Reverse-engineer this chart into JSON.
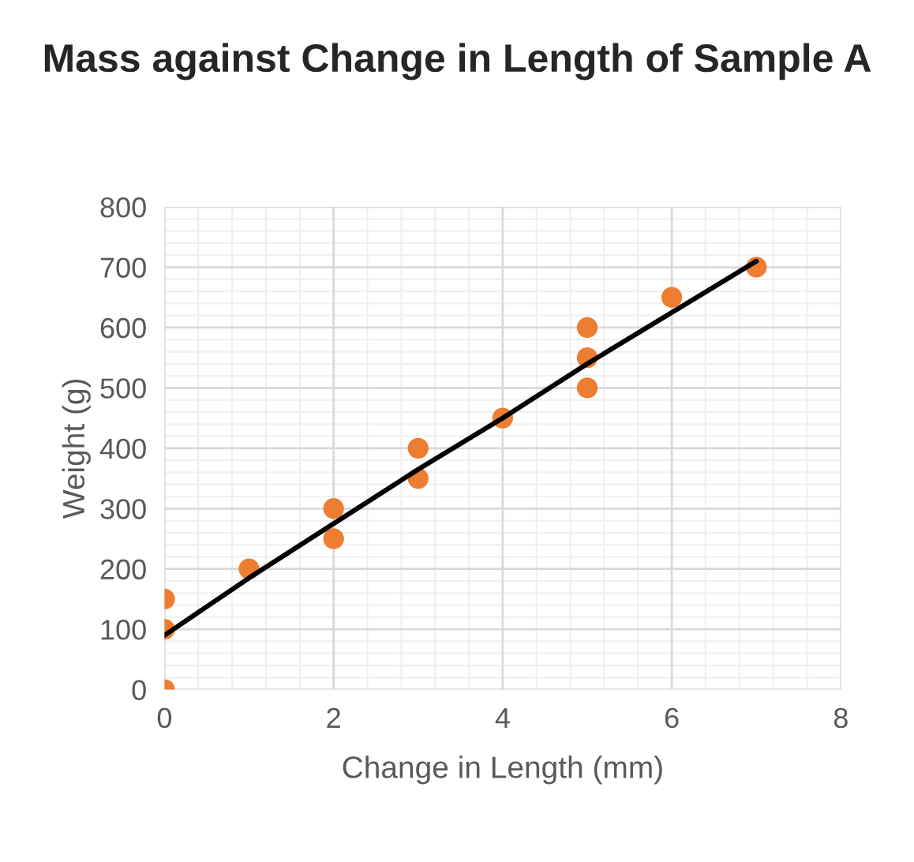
{
  "chart_data": {
    "type": "scatter",
    "title": "Mass against Change in Length of Sample A",
    "xlabel": "Change in Length (mm)",
    "ylabel": "Weight (g)",
    "series": [
      {
        "marker": "circle",
        "color": "#ed7d31",
        "x": [
          0,
          0,
          0,
          1,
          2,
          2,
          3,
          3,
          4,
          5,
          5,
          5,
          6,
          7
        ],
        "values": [
          0,
          100,
          150,
          200,
          250,
          300,
          350,
          400,
          450,
          500,
          550,
          600,
          650,
          700
        ]
      },
      {
        "type": "line",
        "color": "#000000",
        "x": [
          0,
          1,
          2,
          3,
          4,
          5,
          6,
          7
        ],
        "values": [
          90,
          185,
          275,
          365,
          450,
          540,
          625,
          710
        ]
      }
    ],
    "xlim": [
      0,
      8
    ],
    "xticks": [
      0,
      2,
      4,
      6,
      8
    ],
    "ylim": [
      0,
      800
    ],
    "yticks": [
      0,
      100,
      200,
      300,
      400,
      500,
      600,
      700,
      800
    ],
    "grid": true
  }
}
